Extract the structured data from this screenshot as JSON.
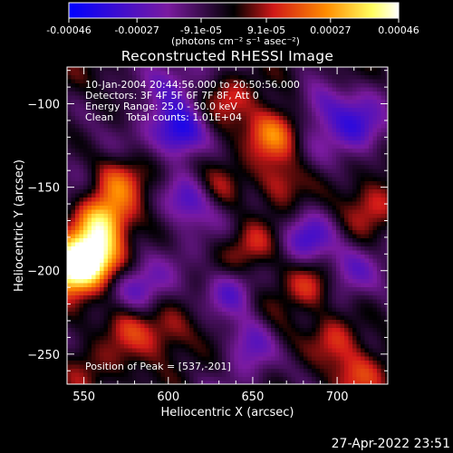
{
  "chart_data": {
    "type": "heatmap",
    "title": "Reconstructed RHESSI Image",
    "xlabel": "Heliocentric X (arcsec)",
    "ylabel": "Heliocentric Y (arcsec)",
    "xlim": [
      540,
      730
    ],
    "ylim": [
      -268,
      -78
    ],
    "xticks": [
      550,
      600,
      650,
      700
    ],
    "yticks": [
      -100,
      -150,
      -200,
      -250
    ],
    "colorbar": {
      "min": -0.00046,
      "max": 0.00046,
      "tick_values": [
        -0.00046,
        -0.00027,
        -9.1e-05,
        9.1e-05,
        0.00027,
        0.00046
      ],
      "tick_labels": [
        "-0.00046",
        "-0.00027",
        "-9.1e-05",
        "9.1e-05",
        "0.00027",
        "0.00046"
      ],
      "units_label": "(photons cm⁻² s⁻¹ asec⁻²)",
      "colors": [
        "#0000ff",
        "#7a1aa0",
        "#000000",
        "#d01818",
        "#ff8c00",
        "#ffff60",
        "#ffffff"
      ]
    },
    "annotations": [
      "10-Jan-2004 20:44:56.000 to 20:50:56.000",
      "Detectors: 3F 4F 5F 6F 7F 8F, Att 0",
      "Energy Range: 25.0 - 50.0 keV",
      "Clean    Total counts: 1.01E+04"
    ],
    "peak_label": "Position of Peak = [537,-201]",
    "peak": [
      537,
      -201
    ],
    "sources": [
      {
        "x": 555,
        "y": -192,
        "v": 0.00046
      },
      {
        "x": 542,
        "y": -200,
        "v": 0.00044
      },
      {
        "x": 562,
        "y": -170,
        "v": 0.00035
      },
      {
        "x": 570,
        "y": -145,
        "v": 0.0002
      },
      {
        "x": 575,
        "y": -232,
        "v": 0.00022
      },
      {
        "x": 548,
        "y": -255,
        "v": 0.00015
      },
      {
        "x": 635,
        "y": -95,
        "v": 0.00015
      },
      {
        "x": 662,
        "y": -118,
        "v": 0.00026
      },
      {
        "x": 666,
        "y": -148,
        "v": 0.00022
      },
      {
        "x": 630,
        "y": -150,
        "v": 0.00012
      },
      {
        "x": 648,
        "y": -185,
        "v": 0.00018
      },
      {
        "x": 632,
        "y": -205,
        "v": 0.00016
      },
      {
        "x": 685,
        "y": -210,
        "v": 0.0002
      },
      {
        "x": 698,
        "y": -240,
        "v": 0.00018
      },
      {
        "x": 712,
        "y": -262,
        "v": 0.00016
      },
      {
        "x": 665,
        "y": -240,
        "v": 0.00012
      },
      {
        "x": 720,
        "y": -160,
        "v": 0.00014
      },
      {
        "x": 598,
        "y": -240,
        "v": 0.00011
      },
      {
        "x": 607,
        "y": -118,
        "v": -0.00035
      },
      {
        "x": 612,
        "y": -158,
        "v": -0.00025
      },
      {
        "x": 635,
        "y": -210,
        "v": -0.00035
      },
      {
        "x": 683,
        "y": -182,
        "v": -0.00028
      },
      {
        "x": 650,
        "y": -242,
        "v": -0.00022
      },
      {
        "x": 712,
        "y": -115,
        "v": -0.00022
      },
      {
        "x": 582,
        "y": -210,
        "v": -0.00018
      },
      {
        "x": 705,
        "y": -200,
        "v": -0.00015
      },
      {
        "x": 690,
        "y": -100,
        "v": -0.0002
      },
      {
        "x": 598,
        "y": -85,
        "v": -0.00015
      }
    ]
  },
  "timestamp": "27-Apr-2022 23:51"
}
